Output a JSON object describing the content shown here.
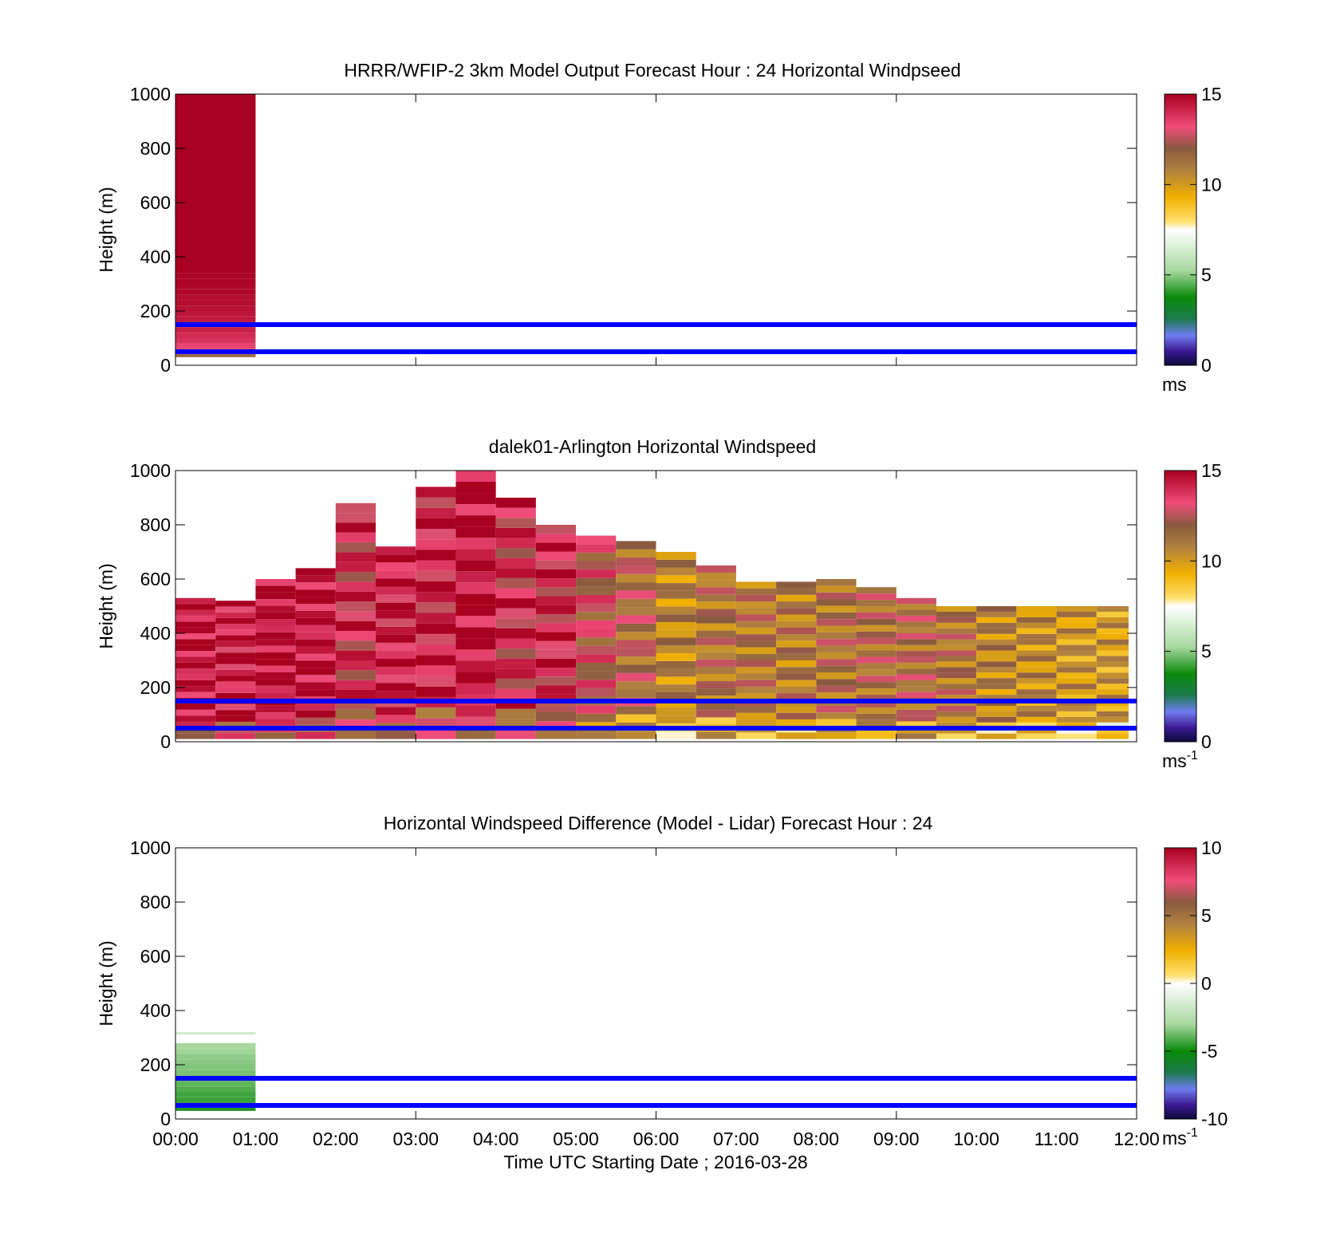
{
  "figure": {
    "xaxis_label": "Time UTC  Starting Date ; 2016-03-28",
    "x_ticks": [
      "00:00",
      "01:00",
      "02:00",
      "03:00",
      "04:00",
      "05:00",
      "06:00",
      "07:00",
      "08:00",
      "09:00",
      "10:00",
      "11:00",
      "12:00"
    ],
    "y_ticks": [
      "0",
      "200",
      "400",
      "600",
      "800",
      "1000"
    ],
    "reference_line_color": "#0000ff"
  },
  "chart_data": [
    {
      "type": "heatmap",
      "id": "model",
      "title": "HRRR/WFIP-2 3km Model Output   Forecast Hour : 24 Horizontal Windpseed",
      "ylabel": "Height (m)",
      "xlim": [
        0,
        12
      ],
      "ylim": [
        0,
        1000
      ],
      "grid": false,
      "reference_lines_m": [
        150,
        50
      ],
      "colorbar": {
        "min": 0,
        "max": 15,
        "ticks": [
          "0",
          "5",
          "10",
          "15"
        ],
        "unit_label": "ms",
        "unit_sup": ""
      },
      "hour_columns": [
        {
          "start_h": 0,
          "end_h": 1,
          "profile": [
            {
              "h": 40,
              "v": 11.5
            },
            {
              "h": 60,
              "v": 12.6
            },
            {
              "h": 80,
              "v": 13.4
            },
            {
              "h": 100,
              "v": 13.8
            },
            {
              "h": 120,
              "v": 14.0
            },
            {
              "h": 140,
              "v": 14.2
            },
            {
              "h": 160,
              "v": 14.3
            },
            {
              "h": 180,
              "v": 14.4
            },
            {
              "h": 200,
              "v": 14.5
            },
            {
              "h": 220,
              "v": 14.6
            },
            {
              "h": 240,
              "v": 14.7
            },
            {
              "h": 260,
              "v": 14.7
            },
            {
              "h": 280,
              "v": 14.8
            },
            {
              "h": 300,
              "v": 14.8
            },
            {
              "h": 320,
              "v": 14.9
            },
            {
              "h": 340,
              "v": 14.9
            },
            {
              "h": 1000,
              "v": 15
            }
          ]
        }
      ]
    },
    {
      "type": "heatmap",
      "id": "lidar",
      "title": "dalek01-Arlington  Horizontal Windspeed",
      "ylabel": "Height (m)",
      "xlim": [
        0,
        12
      ],
      "ylim": [
        0,
        1000
      ],
      "grid": false,
      "reference_lines_m": [
        150,
        50
      ],
      "colorbar": {
        "min": 0,
        "max": 15,
        "ticks": [
          "0",
          "5",
          "10",
          "15"
        ],
        "unit_label": "ms",
        "unit_sup": "-1"
      },
      "hour_columns": [
        {
          "start_h": 0.0,
          "end_h": 0.5,
          "top_m": 530,
          "v": 14.6
        },
        {
          "start_h": 0.5,
          "end_h": 1.0,
          "top_m": 520,
          "v": 14.3
        },
        {
          "start_h": 1.0,
          "end_h": 1.5,
          "top_m": 600,
          "v": 14.8
        },
        {
          "start_h": 1.5,
          "end_h": 2.0,
          "top_m": 640,
          "v": 14.6
        },
        {
          "start_h": 2.0,
          "end_h": 2.5,
          "top_m": 880,
          "v": 13.6
        },
        {
          "start_h": 2.5,
          "end_h": 3.0,
          "top_m": 720,
          "v": 14.2
        },
        {
          "start_h": 3.0,
          "end_h": 3.5,
          "top_m": 940,
          "v": 14.0
        },
        {
          "start_h": 3.5,
          "end_h": 4.0,
          "top_m": 1000,
          "v": 14.7
        },
        {
          "start_h": 4.0,
          "end_h": 4.5,
          "top_m": 900,
          "v": 13.6
        },
        {
          "start_h": 4.5,
          "end_h": 5.0,
          "top_m": 800,
          "v": 13.8
        },
        {
          "start_h": 5.0,
          "end_h": 5.5,
          "top_m": 760,
          "v": 12.6
        },
        {
          "start_h": 5.5,
          "end_h": 6.0,
          "top_m": 740,
          "v": 11.8
        },
        {
          "start_h": 6.0,
          "end_h": 6.5,
          "top_m": 700,
          "v": 10.6
        },
        {
          "start_h": 6.5,
          "end_h": 7.0,
          "top_m": 650,
          "v": 11.3
        },
        {
          "start_h": 7.0,
          "end_h": 7.5,
          "top_m": 590,
          "v": 11.2
        },
        {
          "start_h": 7.5,
          "end_h": 8.0,
          "top_m": 590,
          "v": 11.0
        },
        {
          "start_h": 8.0,
          "end_h": 8.5,
          "top_m": 600,
          "v": 11.4
        },
        {
          "start_h": 8.5,
          "end_h": 9.0,
          "top_m": 570,
          "v": 11.6
        },
        {
          "start_h": 9.0,
          "end_h": 9.5,
          "top_m": 530,
          "v": 11.7
        },
        {
          "start_h": 9.5,
          "end_h": 10.0,
          "top_m": 500,
          "v": 11.3
        },
        {
          "start_h": 10.0,
          "end_h": 10.5,
          "top_m": 500,
          "v": 10.7
        },
        {
          "start_h": 10.5,
          "end_h": 11.0,
          "top_m": 500,
          "v": 10.4
        },
        {
          "start_h": 11.0,
          "end_h": 11.5,
          "top_m": 500,
          "v": 10.1
        },
        {
          "start_h": 11.5,
          "end_h": 11.9,
          "top_m": 500,
          "v": 10.0
        }
      ]
    },
    {
      "type": "heatmap",
      "id": "difference",
      "title": "Horizontal Windspeed Difference (Model - Lidar) Forecast Hour : 24",
      "ylabel": "Height (m)",
      "xlim": [
        0,
        12
      ],
      "ylim": [
        0,
        1000
      ],
      "grid": false,
      "reference_lines_m": [
        150,
        50
      ],
      "colorbar": {
        "min": -10,
        "max": 10,
        "ticks": [
          "-10",
          "-5",
          "0",
          "5",
          "10"
        ],
        "unit_label": "ms",
        "unit_sup": "-1"
      },
      "hour_columns": [
        {
          "start_h": 0,
          "end_h": 1,
          "profile": [
            {
              "h": 40,
              "v": -4.8
            },
            {
              "h": 60,
              "v": -4.6
            },
            {
              "h": 80,
              "v": -4.4
            },
            {
              "h": 100,
              "v": -4.3
            },
            {
              "h": 120,
              "v": -4.1
            },
            {
              "h": 140,
              "v": -3.9
            },
            {
              "h": 160,
              "v": -3.8
            },
            {
              "h": 180,
              "v": -3.6
            },
            {
              "h": 200,
              "v": -3.5
            },
            {
              "h": 220,
              "v": -3.4
            },
            {
              "h": 240,
              "v": -3.3
            },
            {
              "h": 260,
              "v": -3.1
            },
            {
              "h": 280,
              "v": -3.0
            }
          ]
        },
        {
          "start_h": 0,
          "end_h": 1,
          "profile": [
            {
              "h": 320,
              "v": -1.8
            }
          ]
        }
      ]
    }
  ]
}
